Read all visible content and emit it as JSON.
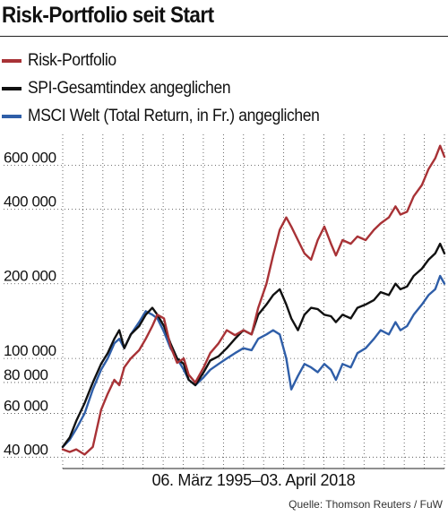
{
  "title": "Risk-Portfolio seit Start",
  "source": "Quelle: Thomson Reuters / FuW",
  "chart_data": {
    "type": "line",
    "yscale": "log",
    "ylim": [
      36000,
      800000
    ],
    "xlim": [
      1995.18,
      2018.26
    ],
    "grid": true,
    "legend_position": "top-left",
    "period_label": "06. März 1995–03. April 2018",
    "y_ticks": [
      {
        "value": 40000,
        "label": "40 000"
      },
      {
        "value": 60000,
        "label": "60 000"
      },
      {
        "value": 80000,
        "label": "80 000"
      },
      {
        "value": 100000,
        "label": "100 000"
      },
      {
        "value": 200000,
        "label": "200 000"
      },
      {
        "value": 400000,
        "label": "400 000"
      },
      {
        "value": 600000,
        "label": "600 000"
      }
    ],
    "series": [
      {
        "name": "Risk-Portfolio",
        "color": "#a83236",
        "x": [
          1995.18,
          1995.6,
          1996.0,
          1996.5,
          1997.0,
          1997.5,
          1997.9,
          1998.3,
          1998.6,
          1998.9,
          1999.3,
          1999.8,
          2000.2,
          2000.6,
          2000.9,
          2001.3,
          2001.7,
          2002.1,
          2002.5,
          2002.8,
          2003.2,
          2003.7,
          2004.1,
          2004.6,
          2005.1,
          2005.6,
          2006.1,
          2006.6,
          2007.0,
          2007.5,
          2007.9,
          2008.3,
          2008.7,
          2009.0,
          2009.4,
          2009.8,
          2010.2,
          2010.6,
          2011.0,
          2011.4,
          2011.7,
          2012.1,
          2012.6,
          2013.0,
          2013.5,
          2014.0,
          2014.4,
          2014.9,
          2015.3,
          2015.6,
          2016.0,
          2016.4,
          2016.9,
          2017.3,
          2017.7,
          2018.0,
          2018.26
        ],
        "values": [
          43000,
          42000,
          43000,
          41000,
          44000,
          62000,
          72000,
          82000,
          78000,
          92000,
          100000,
          108000,
          120000,
          135000,
          150000,
          145000,
          112000,
          96000,
          100000,
          86000,
          80000,
          92000,
          105000,
          115000,
          130000,
          124000,
          130000,
          125000,
          160000,
          200000,
          260000,
          330000,
          370000,
          340000,
          300000,
          265000,
          250000,
          300000,
          340000,
          290000,
          260000,
          300000,
          290000,
          310000,
          300000,
          330000,
          350000,
          370000,
          410000,
          380000,
          390000,
          450000,
          500000,
          580000,
          640000,
          720000,
          650000
        ]
      },
      {
        "name": "SPI-Gesamtindex angeglichen",
        "color": "#111111",
        "x": [
          1995.18,
          1995.6,
          1996.0,
          1996.5,
          1997.0,
          1997.5,
          1997.9,
          1998.3,
          1998.6,
          1998.9,
          1999.3,
          1999.8,
          2000.2,
          2000.6,
          2000.9,
          2001.3,
          2001.7,
          2002.1,
          2002.5,
          2002.8,
          2003.2,
          2003.7,
          2004.1,
          2004.6,
          2005.1,
          2005.6,
          2006.1,
          2006.6,
          2007.0,
          2007.5,
          2007.9,
          2008.3,
          2008.7,
          2009.0,
          2009.4,
          2009.8,
          2010.2,
          2010.6,
          2011.0,
          2011.4,
          2011.7,
          2012.1,
          2012.6,
          2013.0,
          2013.5,
          2014.0,
          2014.4,
          2014.9,
          2015.3,
          2015.6,
          2016.0,
          2016.4,
          2016.9,
          2017.3,
          2017.7,
          2018.0,
          2018.26
        ],
        "values": [
          44000,
          48000,
          56000,
          66000,
          80000,
          95000,
          105000,
          120000,
          130000,
          110000,
          125000,
          135000,
          150000,
          160000,
          150000,
          135000,
          115000,
          100000,
          95000,
          82000,
          78000,
          88000,
          98000,
          102000,
          110000,
          120000,
          130000,
          125000,
          150000,
          165000,
          180000,
          190000,
          165000,
          145000,
          130000,
          150000,
          160000,
          158000,
          150000,
          148000,
          140000,
          150000,
          145000,
          160000,
          165000,
          172000,
          185000,
          180000,
          200000,
          190000,
          195000,
          215000,
          230000,
          250000,
          265000,
          290000,
          265000
        ]
      },
      {
        "name": "MSCI Welt (Total Return, in Fr.) angeglichen",
        "color": "#2f5ea8",
        "x": [
          1995.18,
          1995.6,
          1996.0,
          1996.5,
          1997.0,
          1997.5,
          1997.9,
          1998.3,
          1998.6,
          1998.9,
          1999.3,
          1999.8,
          2000.2,
          2000.6,
          2000.9,
          2001.3,
          2001.7,
          2002.1,
          2002.5,
          2002.8,
          2003.2,
          2003.7,
          2004.1,
          2004.6,
          2005.1,
          2005.6,
          2006.1,
          2006.6,
          2007.0,
          2007.5,
          2007.9,
          2008.3,
          2008.7,
          2009.0,
          2009.4,
          2009.8,
          2010.2,
          2010.6,
          2011.0,
          2011.4,
          2011.7,
          2012.1,
          2012.6,
          2013.0,
          2013.5,
          2014.0,
          2014.4,
          2014.9,
          2015.3,
          2015.6,
          2016.0,
          2016.4,
          2016.9,
          2017.3,
          2017.7,
          2018.0,
          2018.26
        ],
        "values": [
          44000,
          47000,
          52000,
          60000,
          75000,
          90000,
          100000,
          115000,
          120000,
          110000,
          125000,
          140000,
          155000,
          150000,
          145000,
          128000,
          110000,
          100000,
          90000,
          82000,
          78000,
          84000,
          90000,
          95000,
          100000,
          105000,
          110000,
          108000,
          120000,
          125000,
          130000,
          125000,
          100000,
          75000,
          85000,
          95000,
          92000,
          88000,
          95000,
          90000,
          82000,
          95000,
          92000,
          105000,
          110000,
          120000,
          130000,
          125000,
          140000,
          130000,
          135000,
          150000,
          165000,
          180000,
          190000,
          215000,
          200000
        ]
      }
    ]
  }
}
